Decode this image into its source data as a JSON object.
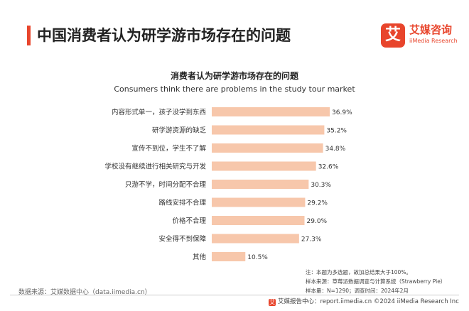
{
  "header": {
    "title": "中国消费者认为研学游市场存在的问题"
  },
  "logo": {
    "mark": "艾",
    "name": "艾媒咨询",
    "sub": "iiMedia Research"
  },
  "chart_data": {
    "type": "bar",
    "orientation": "horizontal",
    "title": "消费者认为研学游市场存在的问题",
    "subtitle": "Consumers think there are problems in the study tour market",
    "categories": [
      "内容形式单一，孩子没学到东西",
      "研学游资源的缺乏",
      "宣传不到位，学生不了解",
      "学校没有继续进行相关研究与开发",
      "只游不学，时间分配不合理",
      "路线安排不合理",
      "价格不合理",
      "安全得不到保障",
      "其他"
    ],
    "values": [
      36.9,
      35.2,
      34.8,
      32.6,
      30.3,
      29.2,
      29.0,
      27.3,
      10.5
    ],
    "labels": [
      "36.9%",
      "35.2%",
      "34.8%",
      "32.6%",
      "30.3%",
      "29.2%",
      "29.0%",
      "27.3%",
      "10.5%"
    ],
    "unit": "%",
    "xlim": [
      0,
      40
    ],
    "grid": false,
    "legend": "none",
    "colors": {
      "bar": "#f7c7ab",
      "label": "#333333"
    }
  },
  "notes": [
    "注：本题为多选题，故加总结果大于100%。",
    "样本来源：草莓派数据调查与计算系统（Strawberry Pie）",
    "样本量：N=1290；调查时间：2024年2月"
  ],
  "source": "数据来源：艾媒数据中心（data.iimedia.cn）",
  "footer": {
    "mark": "艾",
    "text": "艾媒报告中心：report.iimedia.cn   ©2024  iiMedia Research  Inc"
  },
  "theme": {
    "accent": "#e8452c",
    "brand": "#e8452c"
  }
}
